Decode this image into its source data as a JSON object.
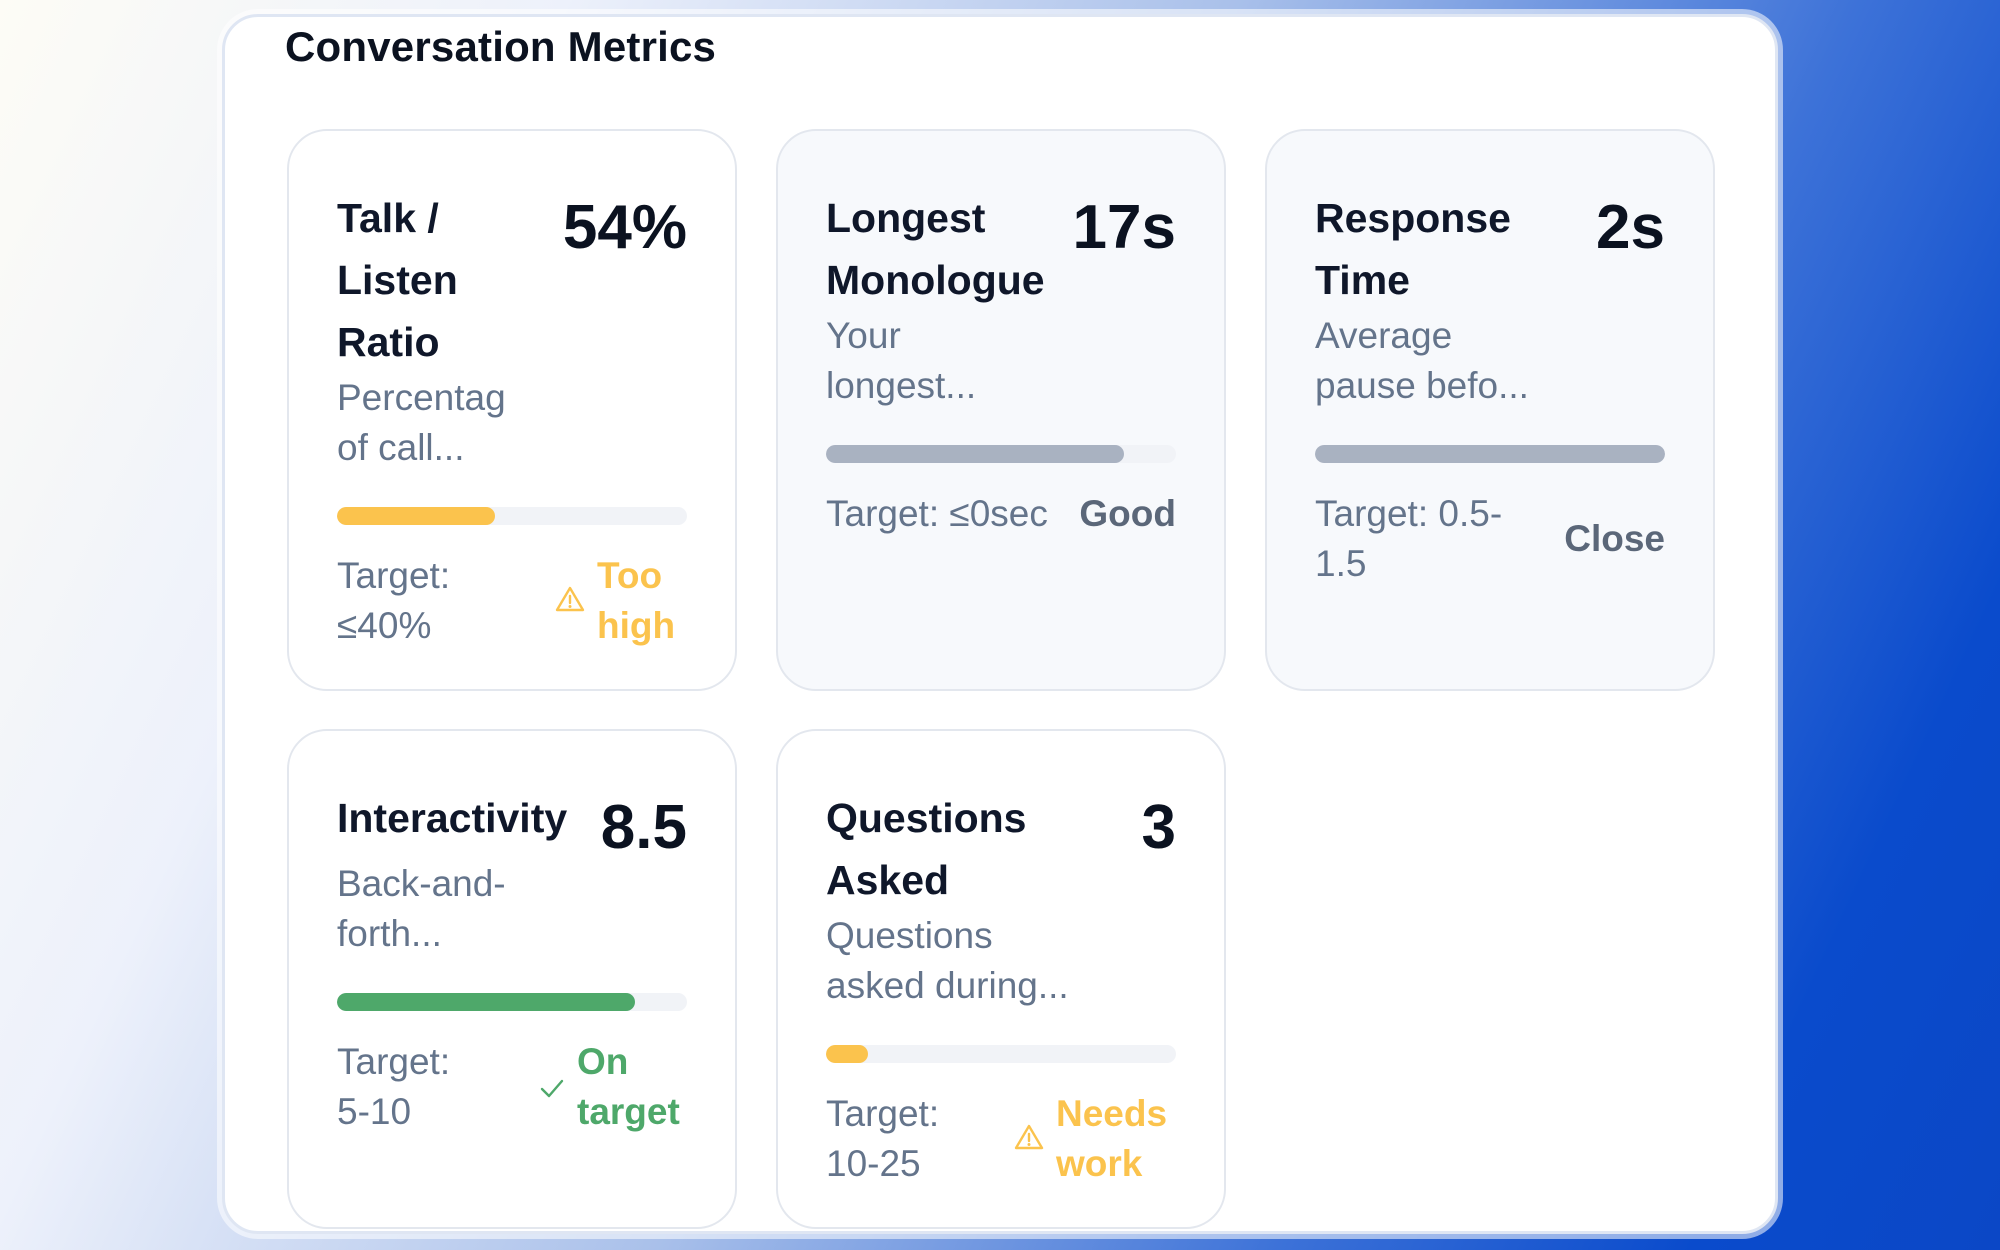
{
  "panel": {
    "title": "Conversation Metrics"
  },
  "colors": {
    "warning": "#fbc34d",
    "good": "#4ea86a",
    "neutral_bar": "#a9b2c1",
    "neutral_text": "#5b6779"
  },
  "metrics": [
    {
      "title": "Talk / Listen Ratio",
      "value": "54%",
      "description": "Percentage of call...",
      "progress_percent": 45,
      "target": "Target: ≤40%",
      "status": "Too high",
      "status_type": "warning",
      "status_icon": "warning-icon"
    },
    {
      "title": "Longest Monologue",
      "value": "17s",
      "description": "Your longest...",
      "progress_percent": 85,
      "target": "Target: ≤0sec",
      "status": "Good",
      "status_type": "neutral",
      "status_icon": ""
    },
    {
      "title": "Response Time",
      "value": "2s",
      "description": "Average pause befo...",
      "progress_percent": 100,
      "target": "Target: 0.5-1.5",
      "status": "Close",
      "status_type": "neutral",
      "status_icon": ""
    },
    {
      "title": "Interactivity",
      "value": "8.5",
      "description": "Back-and-forth...",
      "progress_percent": 85,
      "target": "Target: 5-10",
      "status": "On target",
      "status_type": "good",
      "status_icon": "check-icon"
    },
    {
      "title": "Questions Asked",
      "value": "3",
      "description": "Questions asked during...",
      "progress_percent": 12,
      "target": "Target: 10-25",
      "status": "Needs work",
      "status_type": "warning",
      "status_icon": "warning-icon"
    }
  ]
}
